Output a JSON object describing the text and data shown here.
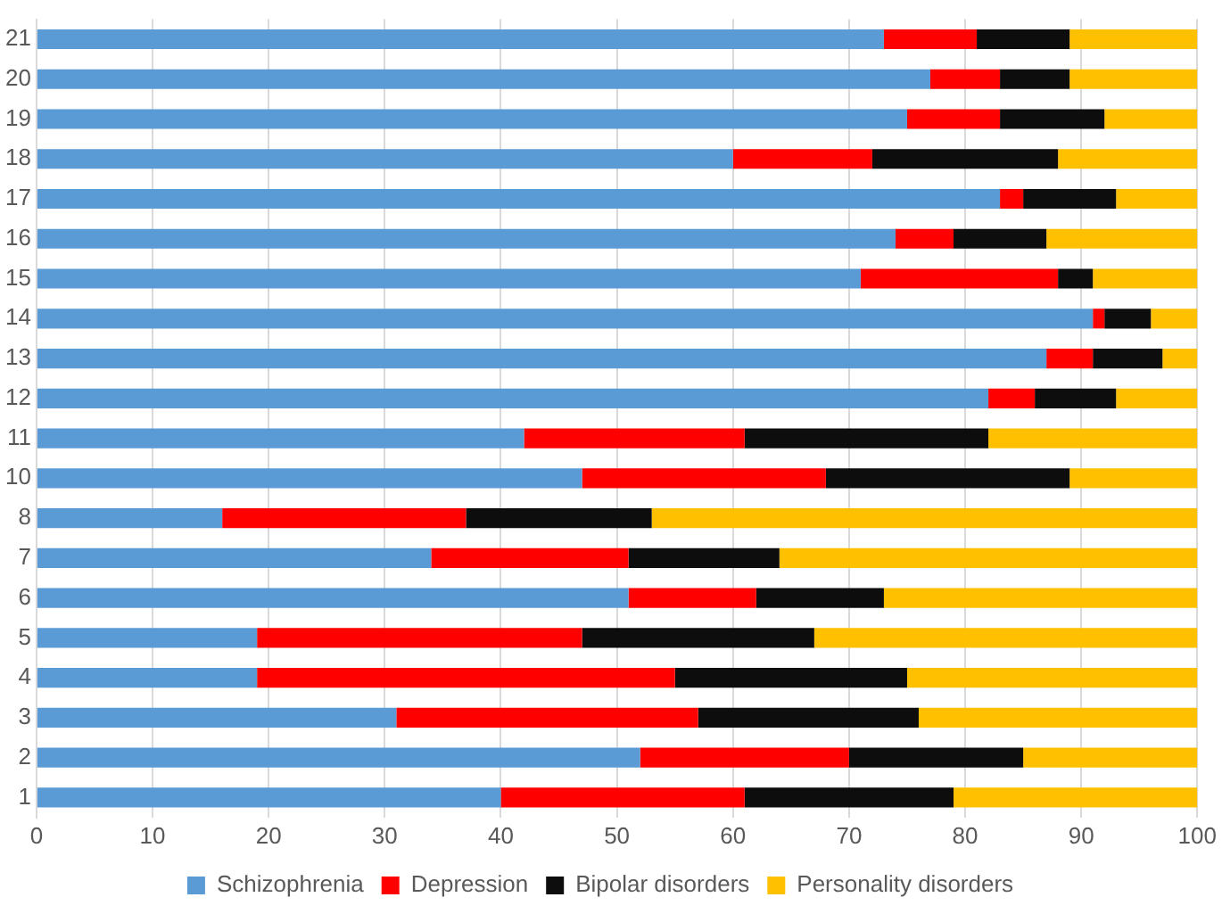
{
  "chart_data": {
    "type": "bar",
    "orientation": "horizontal",
    "stacked": true,
    "categories": [
      "21",
      "20",
      "19",
      "18",
      "17",
      "16",
      "15",
      "14",
      "13",
      "12",
      "11",
      "10",
      "8",
      "7",
      "6",
      "5",
      "4",
      "3",
      "2",
      "1"
    ],
    "series": [
      {
        "name": "Schizophrenia",
        "color": "#5b9bd5",
        "values": [
          73,
          77,
          75,
          60,
          83,
          74,
          71,
          91,
          87,
          82,
          42,
          47,
          16,
          34,
          51,
          19,
          19,
          31,
          52,
          40
        ]
      },
      {
        "name": "Depression",
        "color": "#ff0000",
        "values": [
          8,
          6,
          8,
          12,
          2,
          5,
          17,
          1,
          4,
          4,
          19,
          21,
          21,
          17,
          11,
          28,
          36,
          26,
          18,
          21
        ]
      },
      {
        "name": "Bipolar disorders",
        "color": "#0d0d0d",
        "values": [
          8,
          6,
          9,
          16,
          8,
          8,
          3,
          4,
          6,
          7,
          21,
          21,
          16,
          13,
          11,
          20,
          20,
          19,
          15,
          18
        ]
      },
      {
        "name": "Personality disorders",
        "color": "#ffc000",
        "values": [
          11,
          11,
          8,
          12,
          7,
          13,
          9,
          4,
          3,
          7,
          18,
          11,
          47,
          36,
          27,
          33,
          25,
          24,
          15,
          21
        ]
      }
    ],
    "xlim": [
      0,
      100
    ],
    "xticks": [
      0,
      10,
      20,
      30,
      40,
      50,
      60,
      70,
      80,
      90,
      100
    ],
    "grid": "x",
    "legend": "bottom"
  }
}
